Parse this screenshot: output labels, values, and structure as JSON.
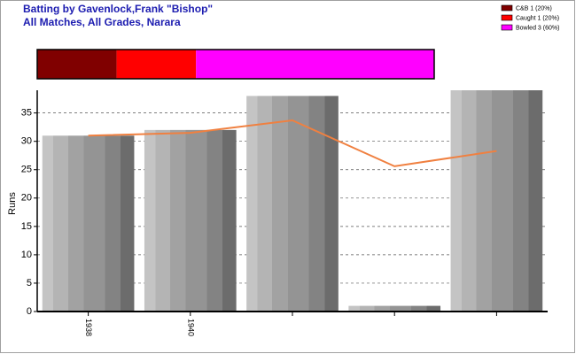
{
  "chart_data": [
    {
      "type": "stacked-hbar",
      "title": "Batting by Gavenlock,Frank \"Bishop\"",
      "subtitle": "All Matches, All Grades, Narara",
      "xlim": [
        0,
        100
      ],
      "series": [
        {
          "name": "C&B 1 (20%)",
          "color": "#800000",
          "values": [
            20
          ]
        },
        {
          "name": "Caught 1 (20%)",
          "color": "#ff0000",
          "values": [
            20
          ]
        },
        {
          "name": "Bowled 3 (60%)",
          "color": "#ff00ff",
          "values": [
            60
          ]
        }
      ]
    },
    {
      "type": "bar",
      "ylabel": "Runs",
      "categories": [
        "1938",
        "1940",
        null,
        null,
        null
      ],
      "values": [
        31,
        32,
        38,
        1,
        39
      ],
      "line": {
        "color": "#f08040",
        "values": [
          31,
          31.5,
          33.7,
          25.6,
          28.3
        ]
      },
      "ylim": [
        0,
        39
      ],
      "yticks": [
        0,
        5,
        10,
        15,
        20,
        25,
        30,
        35
      ],
      "grid": true
    }
  ]
}
